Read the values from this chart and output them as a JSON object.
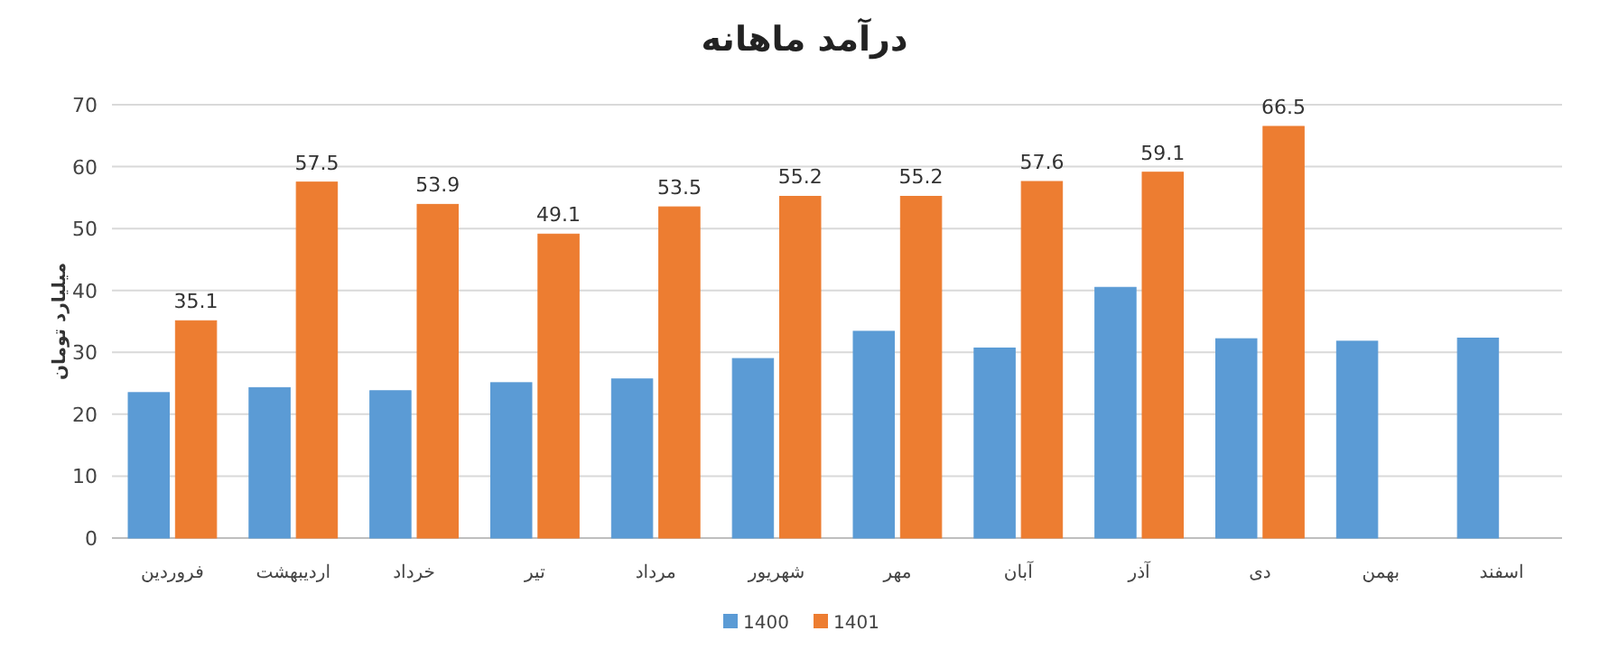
{
  "chart_data": {
    "type": "bar",
    "title": "درآمد ماهانه",
    "ylabel": "میلیارد تومان",
    "categories": [
      "فروردین",
      "اردیبهشت",
      "خرداد",
      "تیر",
      "مرداد",
      "شهریور",
      "مهر",
      "آبان",
      "آذر",
      "دی",
      "بهمن",
      "اسفند"
    ],
    "series": [
      {
        "name": "1400",
        "color": "#5b9bd5",
        "values": [
          23.5,
          24.3,
          23.8,
          25.1,
          25.7,
          29,
          33.4,
          30.7,
          40.5,
          32.2,
          31.8,
          32.3
        ]
      },
      {
        "name": "1401",
        "color": "#ed7d31",
        "values": [
          35.1,
          57.5,
          53.9,
          49.1,
          53.5,
          55.2,
          55.2,
          57.6,
          59.1,
          66.5,
          null,
          null
        ],
        "value_labels": [
          "35.1",
          "57.5",
          "53.9",
          "49.1",
          "53.5",
          "55.2",
          "55.2",
          "57.6",
          "59.1",
          "66.5",
          null,
          null
        ]
      }
    ],
    "ylim": [
      0,
      70
    ],
    "yticks": [
      0,
      10,
      20,
      30,
      40,
      50,
      60,
      70
    ],
    "grid": "y",
    "legend": "bottom"
  }
}
